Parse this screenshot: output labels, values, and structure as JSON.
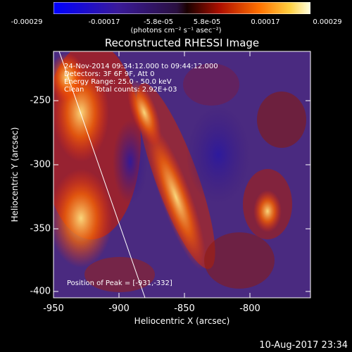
{
  "colorbar": {
    "tick_labels": [
      "-0.00029",
      "-0.00017",
      "-5.8e-05",
      "5.8e-05",
      "0.00017",
      "0.00029"
    ],
    "units": "(photons cm⁻² s⁻¹ asec⁻²)"
  },
  "plot": {
    "title": "Reconstructed RHESSI Image",
    "annotations": [
      "24-Nov-2014 09:34:12.000 to 09:44:12.000",
      "Detectors: 3F 6F 9F, Att 0",
      "Energy Range: 25.0 - 50.0 keV",
      "Clean     Total counts: 2.92E+03"
    ],
    "peak_label": "Position of Peak = [-931,-332]",
    "xlabel": "Heliocentric X (arcsec)",
    "ylabel": "Heliocentric Y (arcsec)",
    "x_ticks": [
      "-950",
      "-900",
      "-850",
      "-800"
    ],
    "y_ticks": [
      "-250",
      "-300",
      "-350",
      "-400"
    ],
    "x_range": [
      -950,
      -765
    ],
    "y_range": [
      -405,
      -215
    ]
  },
  "footer": {
    "timestamp": "10-Aug-2017 23:34"
  }
}
